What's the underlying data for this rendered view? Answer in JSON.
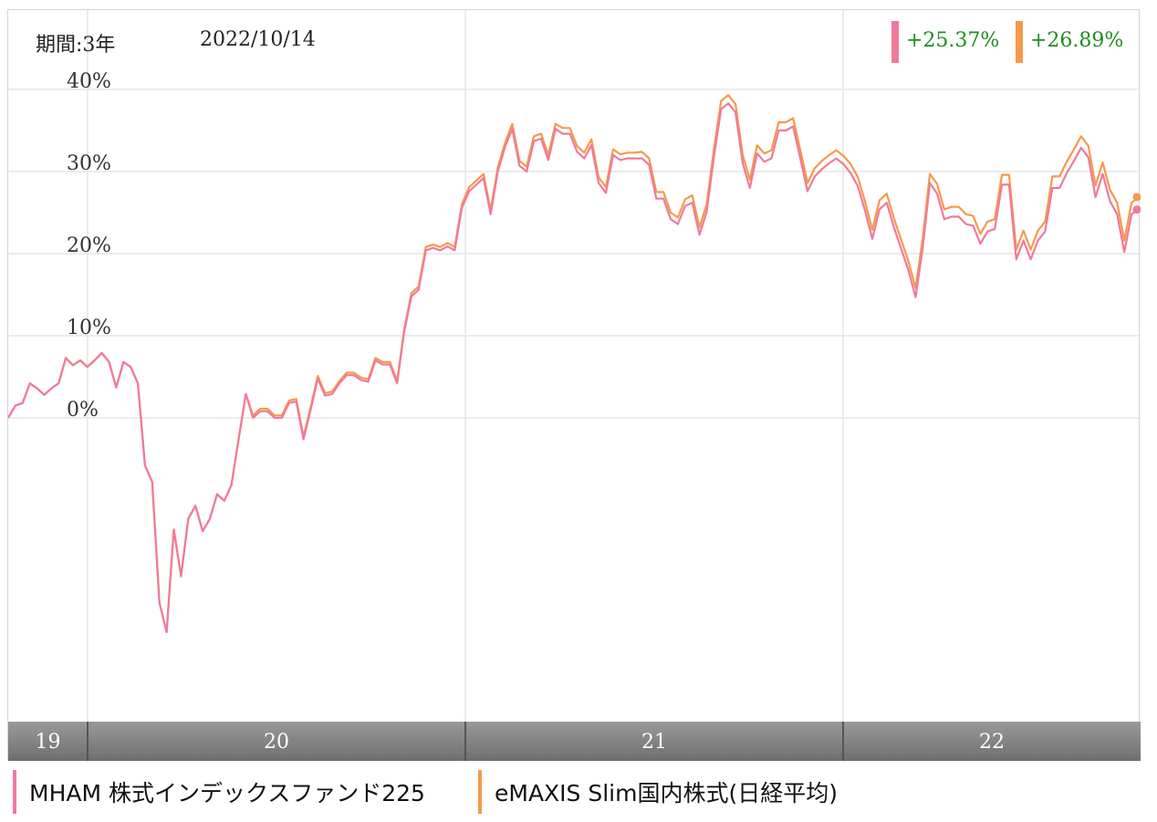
{
  "header": {
    "period_label": "期間:3年",
    "date_label": "2022/10/14"
  },
  "returns": [
    {
      "value": "+25.37%",
      "color": "#f07a9a"
    },
    {
      "value": "+26.89%",
      "color": "#f59a4b"
    }
  ],
  "legend": [
    {
      "label": "MHAM 株式インデックスファンド225",
      "color": "#f07a9a"
    },
    {
      "label": "eMAXIS Slim国内株式(日経平均)",
      "color": "#f59a4b"
    }
  ],
  "chart_data": {
    "type": "line",
    "title": "",
    "xlabel": "",
    "ylabel": "",
    "x_tick_labels": [
      "19",
      "20",
      "21",
      "22"
    ],
    "y_tick_labels": [
      "40%",
      "30%",
      "20%",
      "10%",
      "0%"
    ],
    "y_ticks": [
      40,
      30,
      20,
      10,
      0
    ],
    "ylim": [
      -37,
      49
    ],
    "grid": true,
    "legend_position": "bottom",
    "series": [
      {
        "name": "MHAM 株式インデックスファンド225",
        "color": "#f07a9a",
        "values": [
          0,
          1.5,
          1.8,
          4.2,
          3.6,
          2.8,
          3.6,
          4.2,
          7.3,
          6.4,
          7.0,
          6.2,
          7.0,
          7.9,
          6.8,
          3.7,
          6.8,
          6.2,
          4.2,
          -5.8,
          -7.8,
          -22.5,
          -26.1,
          -13.6,
          -19.3,
          -12.3,
          -10.7,
          -13.8,
          -12.3,
          -9.3,
          -10.1,
          -8.2,
          -2.6,
          2.9,
          0.0,
          0.8,
          0.8,
          0.0,
          0.0,
          1.8,
          2.0,
          -2.6,
          1.0,
          4.8,
          2.7,
          2.9,
          4.2,
          5.2,
          5.2,
          4.6,
          4.4,
          7.0,
          6.5,
          6.5,
          4.2,
          10.5,
          14.8,
          15.6,
          20.4,
          20.7,
          20.4,
          20.9,
          20.4,
          25.6,
          27.6,
          28.4,
          29.2,
          24.8,
          30.0,
          33.0,
          35.2,
          30.7,
          30.0,
          33.7,
          34.0,
          31.4,
          35.2,
          34.6,
          34.6,
          32.4,
          31.6,
          33.2,
          28.6,
          27.4,
          32.0,
          31.4,
          31.6,
          31.6,
          31.6,
          30.8,
          26.7,
          26.7,
          24.2,
          23.6,
          25.8,
          26.2,
          22.3,
          25.1,
          31.8,
          37.6,
          38.3,
          37.2,
          31.0,
          28.0,
          32.2,
          31.2,
          31.6,
          35.0,
          35.0,
          35.5,
          31.6,
          27.6,
          29.4,
          30.3,
          31.0,
          31.6,
          30.9,
          29.8,
          28.2,
          25.2,
          21.8,
          25.4,
          26.2,
          23.2,
          20.6,
          18.0,
          14.7,
          20.7,
          28.6,
          27.3,
          24.2,
          24.5,
          24.5,
          23.6,
          23.4,
          21.2,
          22.7,
          23.0,
          28.4,
          28.4,
          19.3,
          21.6,
          19.3,
          21.6,
          22.7,
          28.0,
          28.0,
          29.8,
          31.3,
          32.9,
          31.7,
          26.9,
          29.7,
          26.4,
          24.8,
          20.2,
          24.8,
          25.4
        ],
        "end_value": 25.37
      },
      {
        "name": "eMAXIS Slim国内株式(日経平均)",
        "color": "#f59a4b",
        "values": [
          0,
          1.5,
          1.8,
          4.2,
          3.6,
          2.8,
          3.6,
          4.2,
          7.3,
          6.4,
          7.0,
          6.2,
          7.0,
          7.9,
          6.8,
          3.7,
          6.8,
          6.2,
          4.2,
          -5.8,
          -7.8,
          -22.5,
          -26.1,
          -13.6,
          -19.3,
          -12.3,
          -10.7,
          -13.8,
          -12.3,
          -9.3,
          -10.1,
          -8.2,
          -2.6,
          2.9,
          0.3,
          1.1,
          1.1,
          0.3,
          0.3,
          2.1,
          2.3,
          -2.3,
          1.3,
          5.1,
          3.0,
          3.2,
          4.5,
          5.5,
          5.5,
          4.9,
          4.7,
          7.3,
          6.8,
          6.8,
          4.5,
          10.8,
          15.2,
          16.0,
          20.8,
          21.1,
          20.8,
          21.3,
          20.8,
          26.0,
          28.1,
          28.9,
          29.7,
          25.3,
          30.5,
          33.5,
          35.8,
          31.3,
          30.6,
          34.3,
          34.6,
          32.0,
          35.8,
          35.3,
          35.3,
          33.1,
          32.3,
          33.9,
          29.3,
          28.1,
          32.7,
          32.1,
          32.3,
          32.3,
          32.4,
          31.6,
          27.5,
          27.5,
          25.0,
          24.4,
          26.6,
          27.1,
          23.2,
          26.0,
          32.7,
          38.6,
          39.3,
          38.2,
          32.0,
          29.0,
          33.2,
          32.2,
          32.6,
          36.0,
          36.0,
          36.5,
          32.6,
          28.6,
          30.4,
          31.3,
          32.0,
          32.6,
          31.9,
          30.9,
          29.3,
          26.3,
          22.9,
          26.5,
          27.3,
          24.3,
          21.7,
          19.1,
          15.8,
          21.8,
          29.7,
          28.5,
          25.4,
          25.7,
          25.7,
          24.8,
          24.6,
          22.4,
          23.9,
          24.2,
          29.6,
          29.6,
          20.5,
          22.8,
          20.5,
          22.8,
          23.9,
          29.4,
          29.4,
          31.2,
          32.7,
          34.3,
          33.1,
          28.3,
          31.1,
          27.8,
          26.2,
          21.6,
          26.2,
          26.9
        ],
        "end_value": 26.89
      }
    ]
  }
}
